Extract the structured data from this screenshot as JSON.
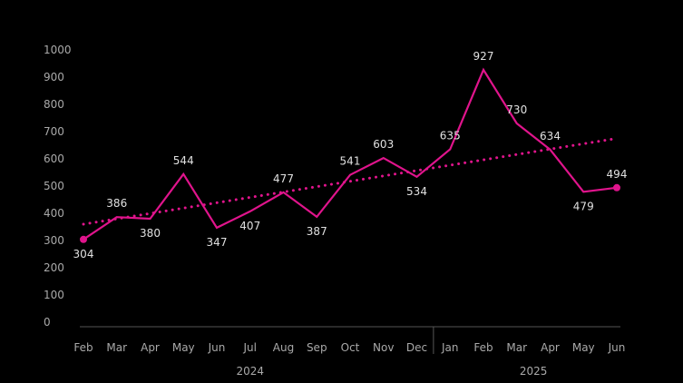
{
  "chart_data": {
    "type": "line",
    "x": [
      "Feb",
      "Mar",
      "Apr",
      "May",
      "Jun",
      "Jul",
      "Aug",
      "Sep",
      "Oct",
      "Nov",
      "Dec",
      "Jan",
      "Feb",
      "Mar",
      "Apr",
      "May",
      "Jun"
    ],
    "years": [
      {
        "label": "2024",
        "start": 0,
        "end": 10
      },
      {
        "label": "2025",
        "start": 11,
        "end": 16
      }
    ],
    "series": [
      {
        "values": [
          304,
          386,
          380,
          544,
          347,
          407,
          477,
          387,
          541,
          603,
          534,
          635,
          927,
          730,
          634,
          479,
          494
        ],
        "color": "#e0148c"
      }
    ],
    "data_labels": [
      {
        "index": 0,
        "text": "304",
        "pos": "below"
      },
      {
        "index": 1,
        "text": "386",
        "pos": "above"
      },
      {
        "index": 2,
        "text": "380",
        "pos": "below"
      },
      {
        "index": 3,
        "text": "544",
        "pos": "above"
      },
      {
        "index": 4,
        "text": "347",
        "pos": "below"
      },
      {
        "index": 5,
        "text": "407",
        "pos": "below"
      },
      {
        "index": 6,
        "text": "477",
        "pos": "above"
      },
      {
        "index": 7,
        "text": "387",
        "pos": "below"
      },
      {
        "index": 8,
        "text": "541",
        "pos": "above"
      },
      {
        "index": 9,
        "text": "603",
        "pos": "above"
      },
      {
        "index": 10,
        "text": "534",
        "pos": "below"
      },
      {
        "index": 11,
        "text": "635",
        "pos": "above"
      },
      {
        "index": 12,
        "text": "927",
        "pos": "above"
      },
      {
        "index": 13,
        "text": "730",
        "pos": "above"
      },
      {
        "index": 14,
        "text": "634",
        "pos": "above"
      },
      {
        "index": 15,
        "text": "479",
        "pos": "below"
      },
      {
        "index": 16,
        "text": "494",
        "pos": "above"
      }
    ],
    "trendline": {
      "start": 360,
      "end": 675,
      "color": "#e0148c",
      "style": "dotted"
    },
    "yticks": [
      0,
      100,
      200,
      300,
      400,
      500,
      600,
      700,
      800,
      900,
      1000
    ],
    "ylim": [
      0,
      1000
    ],
    "grid": false,
    "title": "",
    "xlabel": "",
    "ylabel": ""
  }
}
